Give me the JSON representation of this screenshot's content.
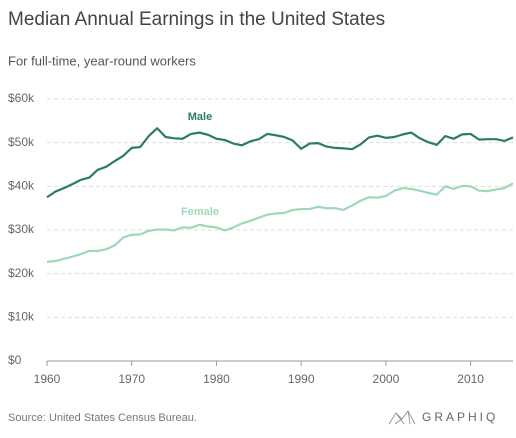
{
  "chart_data": {
    "type": "line",
    "title": "Median Annual Earnings in the United States",
    "subtitle": "For full-time, year-round workers",
    "source": "Source: United States Census Bureau.",
    "brand": "GRAPHIQ",
    "x": [
      1960,
      1961,
      1962,
      1963,
      1964,
      1965,
      1966,
      1967,
      1968,
      1969,
      1970,
      1971,
      1972,
      1973,
      1974,
      1975,
      1976,
      1977,
      1978,
      1979,
      1980,
      1981,
      1982,
      1983,
      1984,
      1985,
      1986,
      1987,
      1988,
      1989,
      1990,
      1991,
      1992,
      1993,
      1994,
      1995,
      1996,
      1997,
      1998,
      1999,
      2000,
      2001,
      2002,
      2003,
      2004,
      2005,
      2006,
      2007,
      2008,
      2009,
      2010,
      2011,
      2012,
      2013,
      2014,
      2015
    ],
    "series": [
      {
        "name": "Male",
        "color": "#2b7d5b",
        "values": [
          37500,
          38800,
          39600,
          40500,
          41500,
          42000,
          43800,
          44500,
          45800,
          47000,
          48800,
          49000,
          51500,
          53300,
          51300,
          51000,
          50900,
          52000,
          52300,
          51800,
          50900,
          50600,
          49800,
          49400,
          50300,
          50800,
          52000,
          51700,
          51300,
          50500,
          48600,
          49800,
          49900,
          49100,
          48800,
          48700,
          48500,
          49600,
          51200,
          51600,
          51100,
          51300,
          51900,
          52300,
          51000,
          50100,
          49500,
          51500,
          50900,
          51900,
          52000,
          50700,
          50800,
          50800,
          50400,
          51200
        ]
      },
      {
        "name": "Female",
        "color": "#9fd8b5",
        "values": [
          22700,
          22900,
          23400,
          23900,
          24500,
          25200,
          25200,
          25600,
          26500,
          28300,
          28900,
          29000,
          29800,
          30100,
          30100,
          29900,
          30600,
          30500,
          31200,
          30800,
          30600,
          29900,
          30600,
          31500,
          32100,
          32800,
          33500,
          33800,
          33900,
          34600,
          34800,
          34800,
          35300,
          35000,
          35000,
          34600,
          35600,
          36700,
          37500,
          37400,
          37800,
          39000,
          39600,
          39400,
          39000,
          38500,
          38100,
          40000,
          39400,
          40100,
          40000,
          39000,
          38900,
          39300,
          39600,
          40700
        ]
      }
    ],
    "xlim": [
      1960,
      2015
    ],
    "xticks": [
      1960,
      1970,
      1980,
      1990,
      2000,
      2010
    ],
    "ylim": [
      0,
      60000
    ],
    "yticks": [
      {
        "value": 0,
        "label": "$0"
      },
      {
        "value": 10000,
        "label": "$10k"
      },
      {
        "value": 20000,
        "label": "$20k"
      },
      {
        "value": 30000,
        "label": "$30k"
      },
      {
        "value": 40000,
        "label": "$40k"
      },
      {
        "value": 50000,
        "label": "$50k"
      },
      {
        "value": 60000,
        "label": "$60k"
      }
    ],
    "grid": true
  }
}
